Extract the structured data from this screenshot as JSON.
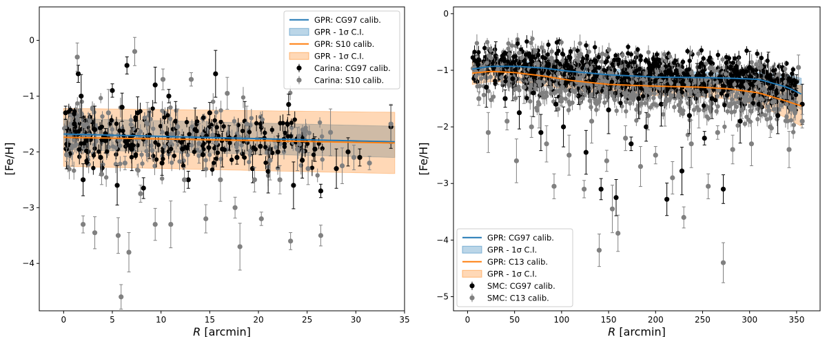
{
  "chart_data": [
    {
      "type": "scatter",
      "xlabel": "R [arcmin]",
      "ylabel": "[Fe/H]",
      "xlim": [
        -2.5,
        35
      ],
      "ylim": [
        -4.85,
        0.6
      ],
      "xticks": [
        0,
        5,
        10,
        15,
        20,
        25,
        30,
        35
      ],
      "yticks": [
        0,
        -1,
        -2,
        -3,
        -4
      ],
      "legend_position": "top-right",
      "models": [
        {
          "name": "GPR: CG97 calib.",
          "band_name": "GPR - 1σ C.I.",
          "color": "#1f77b4",
          "x": [
            0,
            34
          ],
          "y": [
            -1.68,
            -1.82
          ],
          "band_halfwidth": [
            0.28,
            0.28
          ]
        },
        {
          "name": "GPR: S10 calib.",
          "band_name": "GPR - 1σ C.I.",
          "color": "#ff7f0e",
          "x": [
            0,
            34
          ],
          "y": [
            -1.74,
            -1.84
          ],
          "band_halfwidth": [
            0.52,
            0.55
          ]
        }
      ],
      "series": [
        {
          "name": "Carina: CG97 calib.",
          "color": "#000000",
          "points": [
            [
              0.2,
              -1.3
            ],
            [
              0.3,
              -1.95
            ],
            [
              1.1,
              -1.5
            ],
            [
              1.5,
              -0.6
            ],
            [
              1.8,
              -1.0
            ],
            [
              2.0,
              -2.5
            ],
            [
              2.5,
              -2.0
            ],
            [
              3.2,
              -1.6
            ],
            [
              3.8,
              -2.1
            ],
            [
              4.3,
              -1.8
            ],
            [
              5.0,
              -0.9
            ],
            [
              5.5,
              -2.6
            ],
            [
              6.0,
              -1.2
            ],
            [
              6.5,
              -0.45
            ],
            [
              7.0,
              -1.95
            ],
            [
              7.6,
              -1.3
            ],
            [
              8.2,
              -2.65
            ],
            [
              8.8,
              -1.7
            ],
            [
              9.4,
              -0.8
            ],
            [
              10.1,
              -2.2
            ],
            [
              10.8,
              -1.0
            ],
            [
              11.5,
              -1.45
            ],
            [
              12.2,
              -1.95
            ],
            [
              12.8,
              -2.5
            ],
            [
              13.5,
              -1.6
            ],
            [
              14.3,
              -2.05
            ],
            [
              15.0,
              -1.3
            ],
            [
              15.6,
              -0.6
            ],
            [
              16.3,
              -1.95
            ],
            [
              17.0,
              -1.75
            ],
            [
              17.8,
              -2.1
            ],
            [
              18.6,
              -1.45
            ],
            [
              19.4,
              -2.3
            ],
            [
              20.2,
              -1.9
            ],
            [
              21.0,
              -2.35
            ],
            [
              22.0,
              -2.0
            ],
            [
              23.1,
              -1.15
            ],
            [
              23.6,
              -2.6
            ],
            [
              24.5,
              -2.15
            ],
            [
              25.8,
              -1.95
            ],
            [
              26.4,
              -2.7
            ],
            [
              28.0,
              -2.3
            ],
            [
              29.2,
              -2.0
            ],
            [
              30.4,
              -2.1
            ],
            [
              33.6,
              -1.55
            ]
          ]
        },
        {
          "name": "Carina: S10 calib.",
          "color": "#808080",
          "points": [
            [
              0.3,
              -2.05
            ],
            [
              0.9,
              -1.9
            ],
            [
              1.4,
              -0.3
            ],
            [
              2.0,
              -3.3
            ],
            [
              2.6,
              -1.7
            ],
            [
              3.2,
              -3.45
            ],
            [
              3.9,
              -2.4
            ],
            [
              4.6,
              -1.3
            ],
            [
              5.6,
              -3.5
            ],
            [
              5.9,
              -4.6
            ],
            [
              6.3,
              -2.2
            ],
            [
              6.7,
              -3.8
            ],
            [
              7.3,
              -0.2
            ],
            [
              7.9,
              -2.75
            ],
            [
              8.6,
              -1.5
            ],
            [
              9.4,
              -3.3
            ],
            [
              10.2,
              -0.7
            ],
            [
              11.0,
              -3.3
            ],
            [
              11.7,
              -1.55
            ],
            [
              12.4,
              -2.5
            ],
            [
              13.1,
              -0.7
            ],
            [
              13.9,
              -1.85
            ],
            [
              14.6,
              -3.2
            ],
            [
              15.3,
              -1.7
            ],
            [
              16.1,
              -2.5
            ],
            [
              16.8,
              -0.95
            ],
            [
              17.6,
              -3.0
            ],
            [
              18.1,
              -3.7
            ],
            [
              18.8,
              -1.5
            ],
            [
              19.6,
              -2.5
            ],
            [
              20.3,
              -3.2
            ],
            [
              21.2,
              -2.15
            ],
            [
              22.2,
              -2.5
            ],
            [
              23.3,
              -3.6
            ],
            [
              24.0,
              -1.95
            ],
            [
              25.1,
              -2.3
            ],
            [
              26.4,
              -3.5
            ],
            [
              27.4,
              -1.65
            ],
            [
              28.6,
              -2.25
            ],
            [
              29.8,
              -2.1
            ],
            [
              31.4,
              -2.2
            ],
            [
              33.6,
              -1.5
            ]
          ]
        }
      ],
      "legend_entries": [
        "GPR: CG97 calib.",
        "GPR - 1σ C.I.",
        "GPR: S10 calib.",
        "GPR - 1σ C.I.",
        "Carina: CG97 calib.",
        "Carina: S10 calib."
      ]
    },
    {
      "type": "scatter",
      "xlabel": "R [arcmin]",
      "ylabel": "[Fe/H]",
      "xlim": [
        -15,
        375
      ],
      "ylim": [
        -5.25,
        0.12
      ],
      "xticks": [
        0,
        50,
        100,
        150,
        200,
        250,
        300,
        350
      ],
      "yticks": [
        0,
        -1,
        -2,
        -3,
        -4,
        -5
      ],
      "legend_position": "bottom-left",
      "models": [
        {
          "name": "GPR: CG97 calib.",
          "band_name": "GPR - 1σ C.I.",
          "color": "#1f77b4",
          "x": [
            5,
            25,
            50,
            80,
            110,
            150,
            200,
            250,
            280,
            310,
            340,
            355
          ],
          "y": [
            -0.98,
            -0.93,
            -0.93,
            -0.96,
            -1.02,
            -1.08,
            -1.12,
            -1.13,
            -1.14,
            -1.16,
            -1.3,
            -1.42
          ],
          "band_halfwidth": [
            0.12,
            0.1,
            0.1,
            0.1,
            0.1,
            0.1,
            0.1,
            0.1,
            0.1,
            0.12,
            0.22,
            0.28
          ]
        },
        {
          "name": "GPR: C13 calib.",
          "band_name": "GPR - 1σ C.I.",
          "color": "#ff7f0e",
          "x": [
            5,
            25,
            50,
            80,
            110,
            150,
            200,
            250,
            280,
            310,
            340,
            355
          ],
          "y": [
            -1.05,
            -1.02,
            -1.04,
            -1.1,
            -1.18,
            -1.25,
            -1.28,
            -1.3,
            -1.33,
            -1.4,
            -1.55,
            -1.63
          ],
          "band_halfwidth": [
            0.2,
            0.18,
            0.17,
            0.17,
            0.17,
            0.17,
            0.17,
            0.17,
            0.18,
            0.22,
            0.3,
            0.36
          ]
        }
      ],
      "series": [
        {
          "name": "SMC: CG97 calib.",
          "color": "#000000",
          "points": [
            [
              10,
              -0.85
            ],
            [
              20,
              -1.3
            ],
            [
              30,
              -0.75
            ],
            [
              40,
              -1.5
            ],
            [
              48,
              -1.15
            ],
            [
              55,
              -1.75
            ],
            [
              62,
              -0.9
            ],
            [
              70,
              -1.4
            ],
            [
              78,
              -2.1
            ],
            [
              86,
              -1.05
            ],
            [
              94,
              -1.6
            ],
            [
              102,
              -2.0
            ],
            [
              110,
              -0.95
            ],
            [
              118,
              -1.45
            ],
            [
              126,
              -2.45
            ],
            [
              134,
              -1.2
            ],
            [
              142,
              -3.1
            ],
            [
              150,
              -1.7
            ],
            [
              158,
              -3.25
            ],
            [
              166,
              -1.05
            ],
            [
              174,
              -2.3
            ],
            [
              182,
              -1.5
            ],
            [
              190,
              -2.0
            ],
            [
              198,
              -0.9
            ],
            [
              206,
              -1.6
            ],
            [
              212,
              -3.28
            ],
            [
              220,
              -1.3
            ],
            [
              228,
              -2.78
            ],
            [
              236,
              -1.8
            ],
            [
              244,
              -1.1
            ],
            [
              252,
              -2.2
            ],
            [
              260,
              -1.5
            ],
            [
              272,
              -3.1
            ],
            [
              280,
              -1.2
            ],
            [
              290,
              -1.9
            ],
            [
              300,
              -0.95
            ],
            [
              310,
              -1.6
            ],
            [
              320,
              -1.1
            ],
            [
              330,
              -1.8
            ],
            [
              340,
              -1.3
            ],
            [
              350,
              -1.2
            ],
            [
              356,
              -1.6
            ]
          ]
        },
        {
          "name": "SMC: C13 calib.",
          "color": "#808080",
          "points": [
            [
              12,
              -1.5
            ],
            [
              22,
              -2.1
            ],
            [
              32,
              -1.0
            ],
            [
              42,
              -1.9
            ],
            [
              52,
              -2.6
            ],
            [
              60,
              -1.3
            ],
            [
              68,
              -2.0
            ],
            [
              76,
              -1.6
            ],
            [
              84,
              -2.3
            ],
            [
              92,
              -3.05
            ],
            [
              100,
              -1.5
            ],
            [
              108,
              -2.5
            ],
            [
              116,
              -1.2
            ],
            [
              124,
              -3.1
            ],
            [
              132,
              -1.9
            ],
            [
              140,
              -4.18
            ],
            [
              148,
              -2.6
            ],
            [
              154,
              -3.45
            ],
            [
              160,
              -3.88
            ],
            [
              168,
              -2.2
            ],
            [
              176,
              -1.4
            ],
            [
              184,
              -2.7
            ],
            [
              192,
              -1.8
            ],
            [
              200,
              -2.5
            ],
            [
              210,
              -1.6
            ],
            [
              218,
              -2.9
            ],
            [
              230,
              -3.6
            ],
            [
              238,
              -2.3
            ],
            [
              246,
              -1.7
            ],
            [
              256,
              -3.05
            ],
            [
              266,
              -2.1
            ],
            [
              272,
              -4.4
            ],
            [
              282,
              -2.4
            ],
            [
              292,
              -1.7
            ],
            [
              302,
              -2.3
            ],
            [
              312,
              -1.5
            ],
            [
              322,
              -2.0
            ],
            [
              332,
              -1.3
            ],
            [
              342,
              -2.4
            ],
            [
              352,
              -0.95
            ],
            [
              356,
              -1.9
            ]
          ]
        }
      ],
      "legend_entries": [
        "GPR: CG97 calib.",
        "GPR - 1σ C.I.",
        "GPR: C13 calib.",
        "GPR - 1σ C.I.",
        "SMC: CG97 calib.",
        "SMC: C13 calib."
      ]
    }
  ]
}
